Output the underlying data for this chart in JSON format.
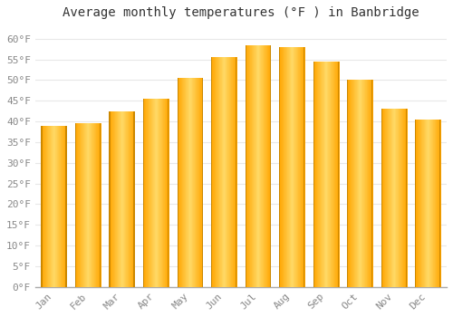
{
  "title": "Average monthly temperatures (°F ) in Banbridge",
  "months": [
    "Jan",
    "Feb",
    "Mar",
    "Apr",
    "May",
    "Jun",
    "Jul",
    "Aug",
    "Sep",
    "Oct",
    "Nov",
    "Dec"
  ],
  "values": [
    39,
    39.5,
    42.5,
    45.5,
    50.5,
    55.5,
    58.5,
    58,
    54.5,
    50,
    43,
    40.5
  ],
  "bar_color_center": "#FFD966",
  "bar_color_edge": "#FFA500",
  "ylim": [
    0,
    63
  ],
  "yticks": [
    0,
    5,
    10,
    15,
    20,
    25,
    30,
    35,
    40,
    45,
    50,
    55,
    60
  ],
  "background_color": "#ffffff",
  "grid_color": "#e8e8e8",
  "title_fontsize": 10,
  "tick_fontsize": 8,
  "bar_width": 0.75,
  "tick_color": "#888888"
}
